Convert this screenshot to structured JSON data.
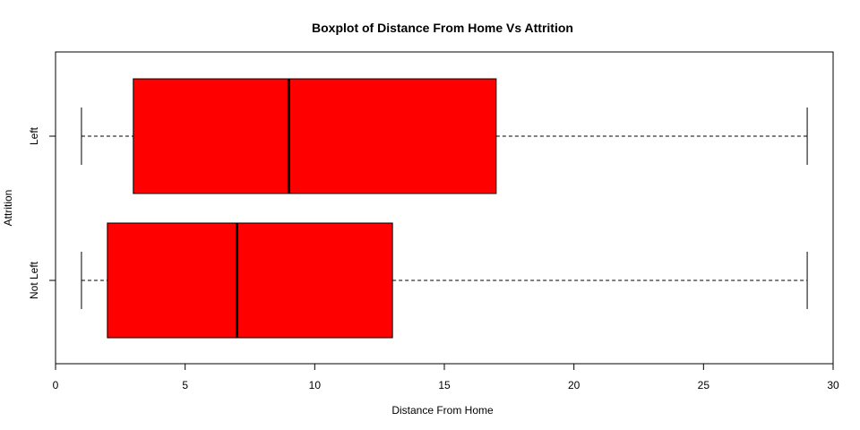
{
  "chart_data": {
    "type": "boxplot",
    "orientation": "horizontal",
    "title": "Boxplot of Distance From Home Vs Attrition",
    "xlabel": "Distance From Home",
    "ylabel": "Attrition",
    "xlim": [
      0,
      30
    ],
    "x_ticks": [
      0,
      5,
      10,
      15,
      20,
      25,
      30
    ],
    "grid": false,
    "box_color": "#ff0000",
    "categories": [
      "Not Left",
      "Left"
    ],
    "boxes": [
      {
        "category": "Not Left",
        "min": 1,
        "q1": 2,
        "median": 7,
        "q3": 13,
        "max": 29
      },
      {
        "category": "Left",
        "min": 1,
        "q1": 3,
        "median": 9,
        "q3": 17,
        "max": 29
      }
    ]
  }
}
